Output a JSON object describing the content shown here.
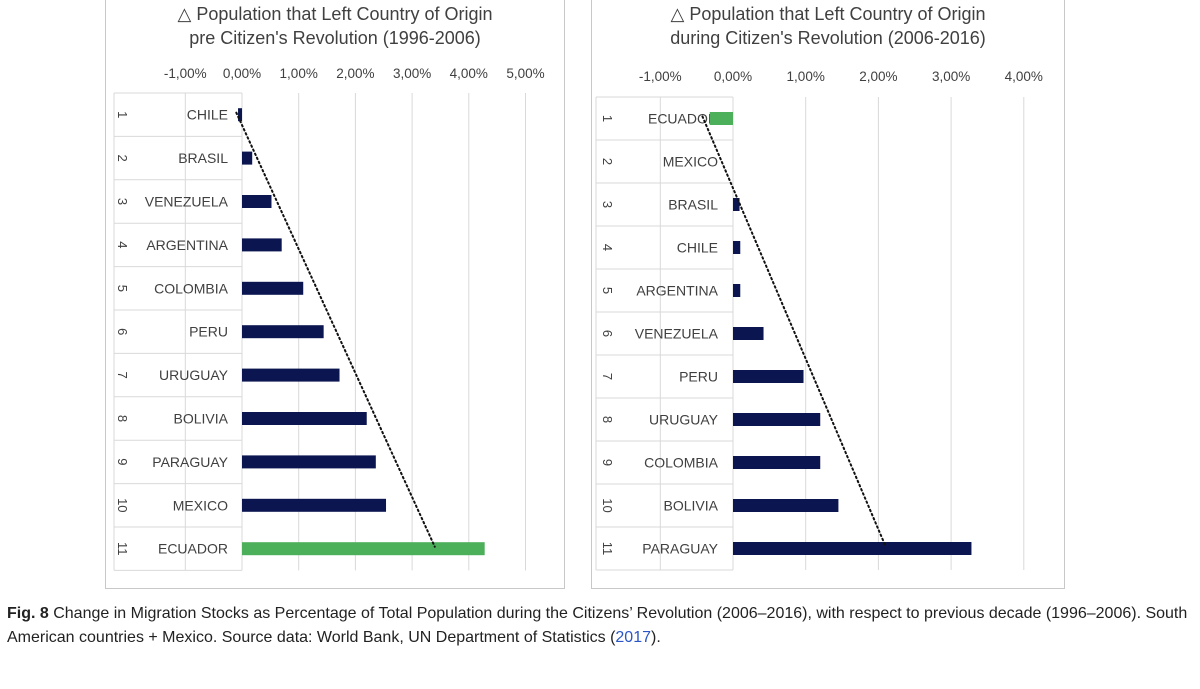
{
  "figure": {
    "label": "Fig. 8",
    "caption": " Change in Migration Stocks as Percentage of Total Population during the Citizens’ Revolution (2006–2016), with respect to previous decade (1996–2006). South American countries + Mexico. Source data: World Bank, UN Department of Statistics (",
    "caption_ref": "2017",
    "caption_end": ")."
  },
  "colors": {
    "bar": "#0b1650",
    "highlight": "#4caf5a",
    "grid": "#d9d9d9",
    "text": "#404040"
  },
  "chart_data": [
    {
      "type": "bar",
      "orientation": "horizontal",
      "title_line1": "△ Population that Left Country of Origin",
      "title_line2": "pre Citizen's Revolution (1996-2006)",
      "xlim": [
        -1.0,
        5.0
      ],
      "ticks": [
        -1,
        0,
        1,
        2,
        3,
        4,
        5
      ],
      "tick_labels": [
        "-1,00%",
        "0,00%",
        "1,00%",
        "2,00%",
        "3,00%",
        "4,00%",
        "5,00%"
      ],
      "ranks": [
        "1",
        "2",
        "3",
        "4",
        "5",
        "6",
        "7",
        "8",
        "9",
        "10",
        "11"
      ],
      "categories": [
        "CHILE",
        "BRASIL",
        "VENEZUELA",
        "ARGENTINA",
        "COLOMBIA",
        "PERU",
        "URUGUAY",
        "BOLIVIA",
        "PARAGUAY",
        "MEXICO",
        "ECUADOR"
      ],
      "values": [
        -0.07,
        0.18,
        0.52,
        0.7,
        1.08,
        1.44,
        1.72,
        2.2,
        2.36,
        2.54,
        4.28
      ],
      "highlight": "ECUADOR",
      "trendline": {
        "style": "dotted",
        "from": [
          -0.1,
          1
        ],
        "to": [
          3.4,
          11
        ]
      }
    },
    {
      "type": "bar",
      "orientation": "horizontal",
      "title_line1": "△ Population that Left Country of Origin",
      "title_line2": "during Citizen's Revolution (2006-2016)",
      "xlim": [
        -1.0,
        4.0
      ],
      "ticks": [
        -1,
        0,
        1,
        2,
        3,
        4
      ],
      "tick_labels": [
        "-1,00%",
        "0,00%",
        "1,00%",
        "2,00%",
        "3,00%",
        "4,00%"
      ],
      "ranks": [
        "1",
        "2",
        "3",
        "4",
        "5",
        "6",
        "7",
        "8",
        "9",
        "10",
        "11"
      ],
      "categories": [
        "ECUADOR",
        "MEXICO",
        "BRASIL",
        "CHILE",
        "ARGENTINA",
        "VENEZUELA",
        "PERU",
        "URUGUAY",
        "COLOMBIA",
        "BOLIVIA",
        "PARAGUAY"
      ],
      "values": [
        -0.32,
        0.0,
        0.09,
        0.1,
        0.1,
        0.42,
        0.97,
        1.2,
        1.2,
        1.45,
        3.28
      ],
      "highlight": "ECUADOR",
      "trendline": {
        "style": "dotted",
        "from": [
          -0.42,
          1
        ],
        "to": [
          2.1,
          11
        ]
      }
    }
  ]
}
